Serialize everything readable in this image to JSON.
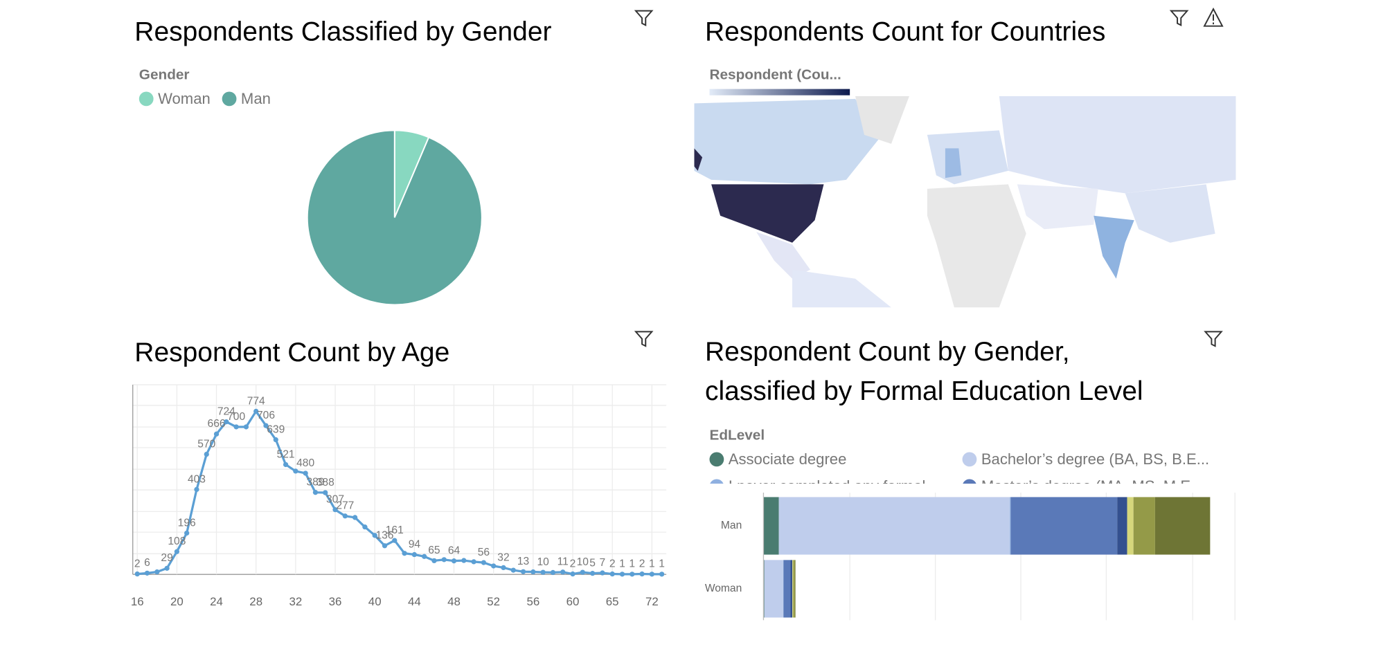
{
  "chart_data": [
    {
      "type": "pie",
      "title": "Respondents Classified by Gender",
      "legend_title": "Gender",
      "categories": [
        "Woman",
        "Man"
      ],
      "values": [
        6.4,
        93.6
      ],
      "colors": [
        "#88d8c0",
        "#5fa8a0"
      ]
    },
    {
      "type": "map",
      "title": "Respondents Count for Countries",
      "legend_title": "Respondent (Cou..."
    },
    {
      "type": "line",
      "title": "Respondent Count by Age",
      "categories": [
        "16",
        null,
        null,
        null,
        "20",
        null,
        null,
        null,
        "24",
        null,
        null,
        null,
        "28",
        null,
        null,
        null,
        "32",
        null,
        null,
        null,
        "36",
        null,
        null,
        null,
        "40",
        null,
        null,
        null,
        "44",
        null,
        null,
        null,
        "48",
        null,
        null,
        null,
        "52",
        null,
        null,
        null,
        "56",
        null,
        null,
        null,
        "60",
        null,
        null,
        null,
        "65",
        null,
        null,
        null,
        "72",
        null
      ],
      "values": [
        2,
        6,
        12,
        29,
        108,
        196,
        403,
        570,
        666,
        724,
        700,
        700,
        774,
        706,
        639,
        521,
        490,
        480,
        389,
        388,
        307,
        277,
        270,
        225,
        185,
        136,
        161,
        100,
        94,
        85,
        65,
        70,
        64,
        66,
        60,
        56,
        40,
        32,
        20,
        13,
        12,
        10,
        9,
        11,
        2,
        10,
        5,
        7,
        2,
        1,
        1,
        2,
        1,
        1
      ],
      "value_labels": [
        "2",
        "6",
        null,
        "29",
        "108",
        "196",
        "403",
        "570",
        "666",
        "724",
        "700",
        null,
        "774",
        "706",
        "639",
        "521",
        null,
        "480",
        "389",
        "388",
        "307",
        "277",
        null,
        null,
        null,
        "136",
        "161",
        null,
        "94",
        null,
        "65",
        null,
        "64",
        null,
        null,
        "56",
        null,
        "32",
        null,
        "13",
        null,
        "10",
        null,
        "11",
        "2",
        "10",
        "5",
        "7",
        "2",
        "1",
        "1",
        "2",
        "1",
        "1"
      ],
      "color": "#5b9fd4",
      "ylim": [
        0,
        900
      ],
      "grid": true
    },
    {
      "type": "bar",
      "orientation": "horizontal",
      "stacked": true,
      "title": "Respondent Count by Gender, classified by Formal Education Level",
      "legend_title": "EdLevel",
      "categories": [
        "Man",
        "Woman"
      ],
      "xlim": [
        0,
        11000
      ],
      "series": [
        {
          "name": "Associate degree",
          "color": "#4a7c70",
          "values": [
            358,
            21
          ]
        },
        {
          "name": "Bachelor’s degree (BA, BS, B.E...",
          "color": "#bfcdec",
          "values": [
            5390,
            442
          ]
        },
        {
          "name": "I never completed any formal",
          "color": "#8fb0e0",
          "values": [
            20,
            4
          ]
        },
        {
          "name": "Master’s degree (MA, MS, M.E...",
          "color": "#5a79b8",
          "values": [
            2485,
            164
          ]
        },
        {
          "name": null,
          "color": "#34508f",
          "values": [
            232,
            42
          ]
        },
        {
          "name": null,
          "color": "#d6d77c",
          "values": [
            147,
            21
          ]
        },
        {
          "name": null,
          "color": "#949a48",
          "values": [
            505,
            42
          ]
        },
        {
          "name": null,
          "color": "#6e7535",
          "values": [
            1284,
            10
          ]
        }
      ]
    }
  ]
}
